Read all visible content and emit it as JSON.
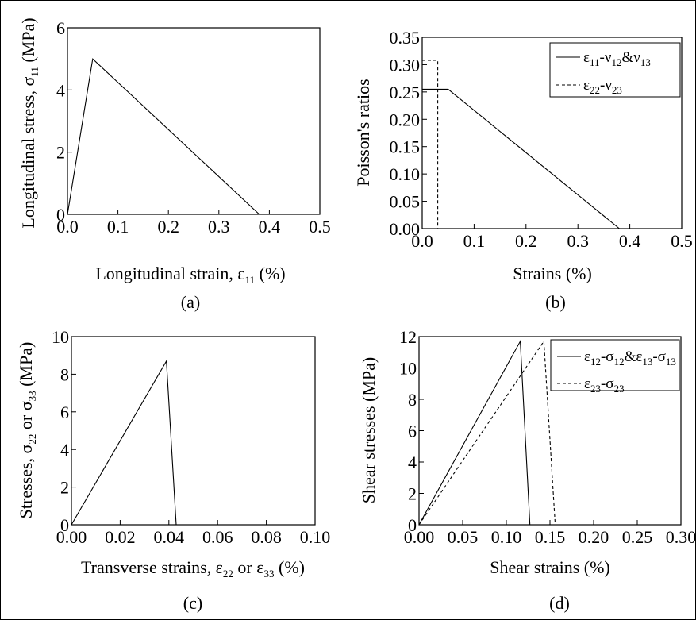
{
  "chart_data": [
    {
      "type": "line",
      "panel_label": "(a)",
      "title": "",
      "xlabel": {
        "main": "Longitudinal strain, ε",
        "sub": "11",
        "tail": " (%)"
      },
      "ylabel": {
        "main": "Longitudinal stress, σ",
        "sub": "11",
        "tail": " (MPa)"
      },
      "xlim": [
        0,
        0.5
      ],
      "ylim": [
        0,
        6
      ],
      "xticks": [
        "0.0",
        "0.1",
        "0.2",
        "0.3",
        "0.4",
        "0.5"
      ],
      "yticks": [
        "0",
        "2",
        "4",
        "6"
      ],
      "series": [
        {
          "style": "solid",
          "x": [
            0,
            0.05,
            0.38
          ],
          "y": [
            0,
            5.0,
            0
          ]
        }
      ]
    },
    {
      "type": "line",
      "panel_label": "(b)",
      "title": "",
      "xlabel": {
        "main": "Strains (%)",
        "sub": "",
        "tail": ""
      },
      "ylabel": {
        "main": "Poisson's ratios",
        "sub": "",
        "tail": ""
      },
      "xlim": [
        0,
        0.5
      ],
      "ylim": [
        0,
        0.35
      ],
      "xticks": [
        "0.0",
        "0.1",
        "0.2",
        "0.3",
        "0.4",
        "0.5"
      ],
      "yticks": [
        "0.00",
        "0.05",
        "0.10",
        "0.15",
        "0.20",
        "0.25",
        "0.30",
        "0.35"
      ],
      "legend_position": "top-right",
      "series": [
        {
          "name": "ε11-ν12&ν13",
          "legend": [
            [
              "ε",
              "11"
            ],
            [
              "-ν",
              "12"
            ],
            [
              "&ν",
              "13"
            ]
          ],
          "style": "solid",
          "x": [
            0,
            0.05,
            0.38,
            0.5
          ],
          "y": [
            0.255,
            0.255,
            0,
            0
          ]
        },
        {
          "name": "ε22-ν23",
          "legend": [
            [
              "ε",
              "22"
            ],
            [
              "-ν",
              "23"
            ]
          ],
          "style": "dashed",
          "x": [
            0,
            0.03,
            0.03,
            0.5
          ],
          "y": [
            0.308,
            0.308,
            0,
            0
          ]
        }
      ]
    },
    {
      "type": "line",
      "panel_label": "(c)",
      "title": "",
      "xlabel": {
        "main": "Transverse strains, ε",
        "sub": "22",
        "mid": " or ε",
        "sub2": "33",
        "tail": " (%)"
      },
      "ylabel": {
        "main": "Stresses, σ",
        "sub": "22",
        "mid": " or σ",
        "sub2": "33",
        "tail": " (MPa)"
      },
      "xlim": [
        0,
        0.1
      ],
      "ylim": [
        0,
        10
      ],
      "xticks": [
        "0.00",
        "0.02",
        "0.04",
        "0.06",
        "0.08",
        "0.10"
      ],
      "yticks": [
        "0",
        "2",
        "4",
        "6",
        "8",
        "10"
      ],
      "series": [
        {
          "style": "solid",
          "x": [
            0,
            0.039,
            0.043
          ],
          "y": [
            0,
            8.7,
            0
          ]
        }
      ]
    },
    {
      "type": "line",
      "panel_label": "(d)",
      "title": "",
      "xlabel": {
        "main": "Shear strains (%)",
        "sub": "",
        "tail": ""
      },
      "ylabel": {
        "main": "Shear stresses (MPa)",
        "sub": "",
        "tail": ""
      },
      "xlim": [
        0,
        0.3
      ],
      "ylim": [
        0,
        12
      ],
      "xticks": [
        "0.00",
        "0.05",
        "0.10",
        "0.15",
        "0.20",
        "0.25",
        "0.30"
      ],
      "yticks": [
        "0",
        "2",
        "4",
        "6",
        "8",
        "10",
        "12"
      ],
      "legend_position": "top-right",
      "series": [
        {
          "name": "ε12-σ12&ε13-σ13",
          "legend": [
            [
              "ε",
              "12"
            ],
            [
              "-σ",
              "12"
            ],
            [
              "&ε",
              "13"
            ],
            [
              "-σ",
              "13"
            ]
          ],
          "style": "solid",
          "x": [
            0,
            0.116,
            0.127
          ],
          "y": [
            0,
            11.7,
            0
          ]
        },
        {
          "name": "ε23-σ23",
          "legend": [
            [
              "ε",
              "23"
            ],
            [
              "-σ",
              "23"
            ]
          ],
          "style": "dashed",
          "x": [
            0,
            0.143,
            0.156
          ],
          "y": [
            0,
            11.7,
            0
          ]
        }
      ]
    }
  ]
}
